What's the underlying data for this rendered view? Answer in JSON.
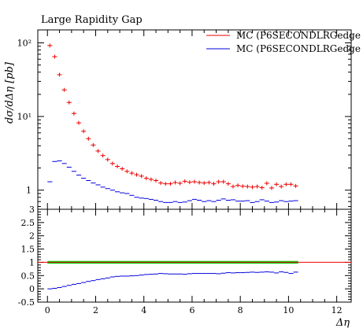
{
  "chart_data": [
    {
      "type": "line",
      "title": "Large Rapidity Gap",
      "xlabel": "",
      "ylabel": "dσ/dΔη [pb]",
      "yscale": "log",
      "xlim": [
        -0.4,
        12.6
      ],
      "ylim": [
        0.55,
        150
      ],
      "yticks": [
        {
          "value": 1,
          "label": "1"
        },
        {
          "value": 10,
          "label": "10¹"
        },
        {
          "value": 100,
          "label": "10²"
        }
      ],
      "legend": "top-right",
      "series": [
        {
          "name": "MC (P6SECONDLRGedge",
          "color": "#ee0000",
          "x": [
            0.1,
            0.3,
            0.5,
            0.7,
            0.9,
            1.1,
            1.3,
            1.5,
            1.7,
            1.9,
            2.1,
            2.3,
            2.5,
            2.7,
            2.9,
            3.1,
            3.3,
            3.5,
            3.7,
            3.9,
            4.1,
            4.3,
            4.5,
            4.7,
            4.9,
            5.1,
            5.3,
            5.5,
            5.7,
            5.9,
            6.1,
            6.3,
            6.5,
            6.7,
            6.9,
            7.1,
            7.3,
            7.5,
            7.7,
            7.9,
            8.1,
            8.3,
            8.5,
            8.7,
            8.9,
            9.1,
            9.3,
            9.5,
            9.7,
            9.9,
            10.1,
            10.3
          ],
          "values": [
            92,
            65,
            37,
            23,
            15.5,
            11,
            8.2,
            6.3,
            5,
            4.1,
            3.4,
            2.95,
            2.6,
            2.3,
            2.1,
            1.95,
            1.8,
            1.7,
            1.62,
            1.55,
            1.45,
            1.4,
            1.35,
            1.25,
            1.22,
            1.22,
            1.27,
            1.24,
            1.32,
            1.28,
            1.3,
            1.27,
            1.25,
            1.27,
            1.22,
            1.3,
            1.3,
            1.22,
            1.12,
            1.16,
            1.13,
            1.12,
            1.1,
            1.12,
            1.08,
            1.24,
            1.07,
            1.2,
            1.12,
            1.2,
            1.2,
            1.14
          ]
        },
        {
          "name": "MC (P6SECONDLRGedge",
          "color": "#0000dd",
          "x": [
            0.1,
            0.3,
            0.5,
            0.7,
            0.9,
            1.1,
            1.3,
            1.5,
            1.7,
            1.9,
            2.1,
            2.3,
            2.5,
            2.7,
            2.9,
            3.1,
            3.3,
            3.5,
            3.7,
            3.9,
            4.1,
            4.3,
            4.5,
            4.7,
            4.9,
            5.1,
            5.3,
            5.5,
            5.7,
            5.9,
            6.1,
            6.3,
            6.5,
            6.7,
            6.9,
            7.1,
            7.3,
            7.5,
            7.7,
            7.9,
            8.1,
            8.3,
            8.5,
            8.7,
            8.9,
            9.1,
            9.3,
            9.5,
            9.7,
            9.9,
            10.1,
            10.3
          ],
          "values": [
            1.3,
            2.45,
            2.5,
            2.3,
            2.05,
            1.8,
            1.6,
            1.45,
            1.35,
            1.25,
            1.18,
            1.1,
            1.05,
            1.0,
            0.95,
            0.92,
            0.9,
            0.85,
            0.8,
            0.78,
            0.77,
            0.75,
            0.73,
            0.7,
            0.68,
            0.68,
            0.7,
            0.68,
            0.69,
            0.72,
            0.75,
            0.73,
            0.7,
            0.72,
            0.7,
            0.73,
            0.76,
            0.73,
            0.74,
            0.71,
            0.71,
            0.72,
            0.68,
            0.7,
            0.74,
            0.71,
            0.68,
            0.69,
            0.72,
            0.7,
            0.71,
            0.72
          ]
        }
      ]
    },
    {
      "type": "line",
      "title": "",
      "xlabel": "Δη",
      "ylabel": "",
      "xlim": [
        -0.4,
        12.6
      ],
      "ylim": [
        -0.5,
        3
      ],
      "xticks": [
        0,
        2,
        4,
        6,
        8,
        10,
        12
      ],
      "yticks": [
        "-0.5",
        "0",
        "0.5",
        "1",
        "1.5",
        "2",
        "2.5",
        "3"
      ],
      "band": {
        "color": "#00cc00",
        "x_range": [
          0,
          10.4
        ],
        "center": 1,
        "half_width": 0.05
      },
      "reference_line": {
        "y": 1,
        "color": "#ee0000"
      },
      "series": [
        {
          "color": "#0000dd",
          "x": [
            0.1,
            0.3,
            0.5,
            0.7,
            0.9,
            1.1,
            1.3,
            1.5,
            1.7,
            1.9,
            2.1,
            2.3,
            2.5,
            2.7,
            2.9,
            3.1,
            3.3,
            3.5,
            3.7,
            3.9,
            4.1,
            4.3,
            4.5,
            4.7,
            4.9,
            5.1,
            5.3,
            5.5,
            5.7,
            5.9,
            6.1,
            6.3,
            6.5,
            6.7,
            6.9,
            7.1,
            7.3,
            7.5,
            7.7,
            7.9,
            8.1,
            8.3,
            8.5,
            8.7,
            8.9,
            9.1,
            9.3,
            9.5,
            9.7,
            9.9,
            10.1,
            10.3
          ],
          "values": [
            0.0,
            0.02,
            0.05,
            0.09,
            0.13,
            0.17,
            0.2,
            0.24,
            0.28,
            0.31,
            0.35,
            0.38,
            0.41,
            0.45,
            0.47,
            0.48,
            0.48,
            0.49,
            0.5,
            0.52,
            0.54,
            0.55,
            0.56,
            0.58,
            0.57,
            0.56,
            0.56,
            0.56,
            0.55,
            0.57,
            0.58,
            0.58,
            0.58,
            0.58,
            0.58,
            0.57,
            0.59,
            0.61,
            0.6,
            0.61,
            0.61,
            0.62,
            0.63,
            0.62,
            0.63,
            0.64,
            0.63,
            0.6,
            0.64,
            0.62,
            0.58,
            0.63
          ]
        }
      ]
    }
  ]
}
